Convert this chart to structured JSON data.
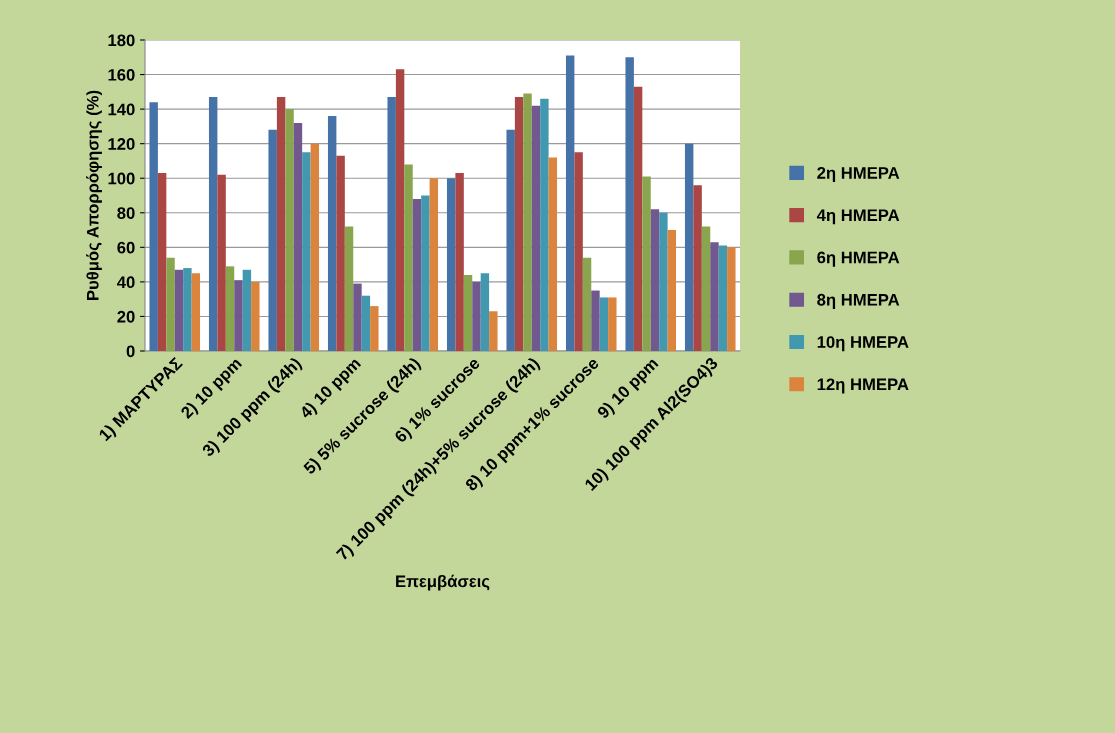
{
  "chart_data": {
    "type": "bar",
    "xlabel": "Επεμβάσεις",
    "ylabel": "Ρυθμός Απορρόφησης (%)",
    "categories": [
      "1) ΜΑΡΤΥΡΑΣ",
      "2) 10 ppm",
      "3) 100 ppm (24h)",
      "4) 10 ppm",
      "5) 5% sucrose (24h)",
      "6) 1% sucrose",
      "7) 100 ppm (24h)+5% sucrose (24h)",
      "8) 10 ppm+1% sucrose",
      "9) 10 ppm",
      "10) 100 ppm Al2(SO4)3"
    ],
    "series": [
      {
        "name": "2η ΗΜΕΡΑ",
        "color": "#4572a7",
        "values": [
          144,
          147,
          128,
          136,
          147,
          100,
          128,
          171,
          170,
          120
        ]
      },
      {
        "name": "4η ΗΜΕΡΑ",
        "color": "#aa4643",
        "values": [
          103,
          102,
          147,
          113,
          163,
          103,
          147,
          115,
          153,
          96
        ]
      },
      {
        "name": "6η ΗΜΕΡΑ",
        "color": "#89a54e",
        "values": [
          54,
          49,
          140,
          72,
          108,
          44,
          149,
          54,
          101,
          72
        ]
      },
      {
        "name": "8η ΗΜΕΡΑ",
        "color": "#71588f",
        "values": [
          47,
          41,
          132,
          39,
          88,
          40,
          142,
          35,
          82,
          63
        ]
      },
      {
        "name": "10η ΗΜΕΡΑ",
        "color": "#4198af",
        "values": [
          48,
          47,
          115,
          32,
          90,
          45,
          146,
          31,
          80,
          61
        ]
      },
      {
        "name": "12η ΗΜΕΡΑ",
        "color": "#db843d",
        "values": [
          45,
          40,
          120,
          26,
          100,
          23,
          112,
          31,
          70,
          60
        ]
      }
    ],
    "ylim": [
      0,
      180
    ],
    "yticks": [
      0,
      20,
      40,
      60,
      80,
      100,
      120,
      140,
      160,
      180
    ],
    "grid": "y",
    "legend": "right"
  }
}
